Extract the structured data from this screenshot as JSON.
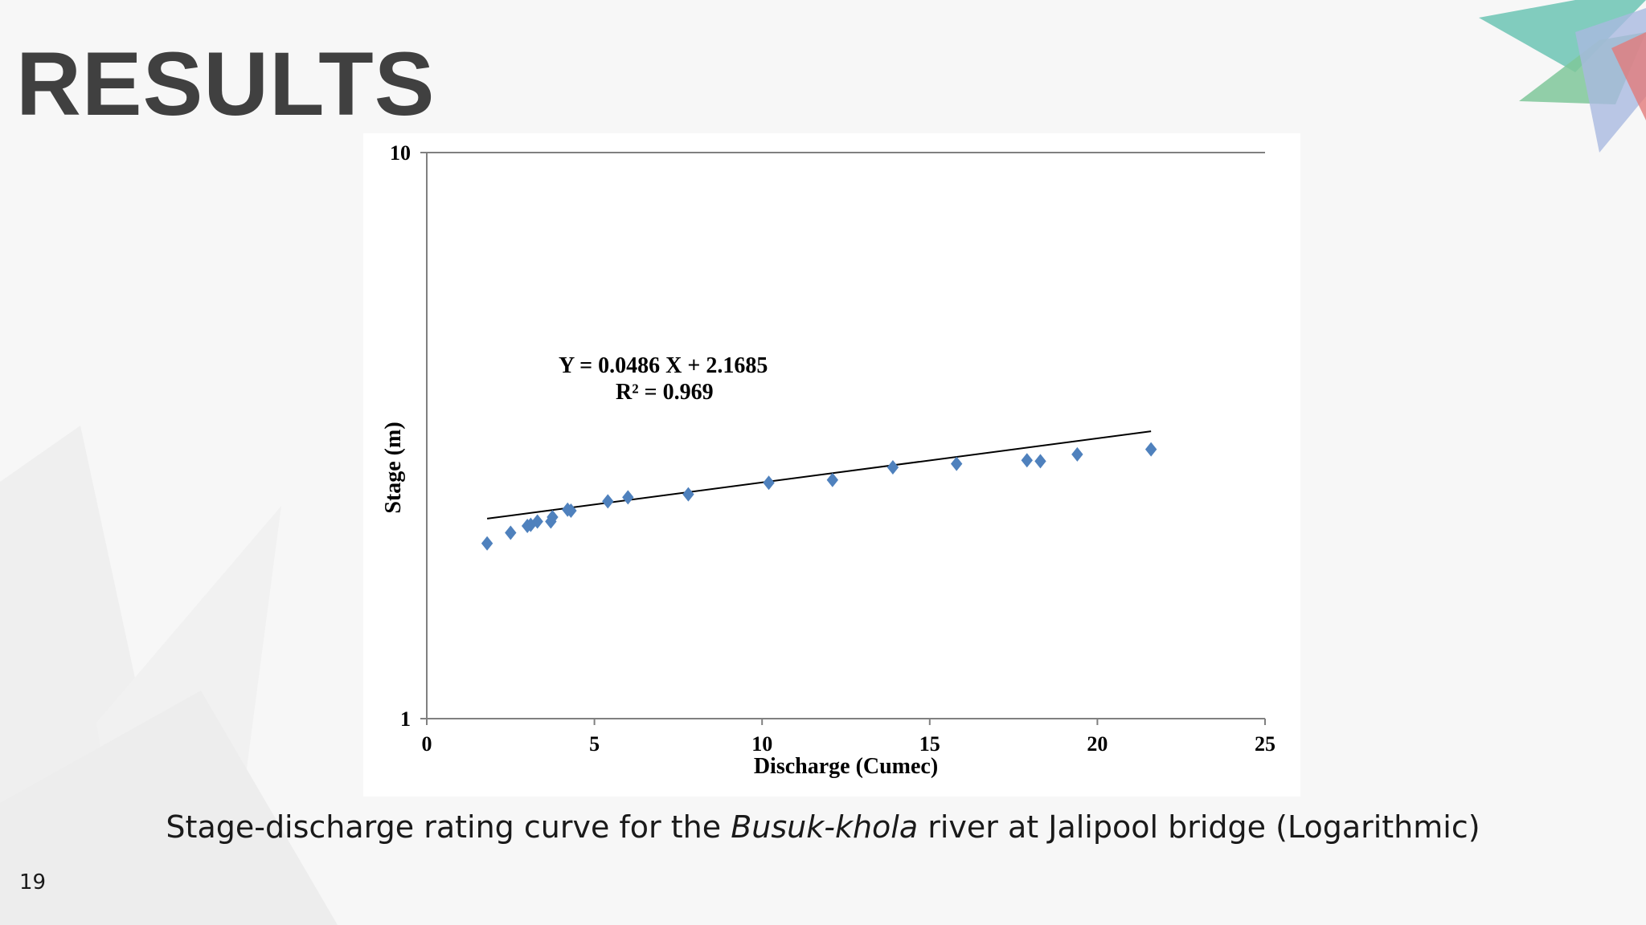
{
  "slide": {
    "title": "RESULTS",
    "caption_before": "Stage-discharge rating curve for the",
    "caption_italic": "Busuk-khola",
    "caption_after": "river at Jalipool bridge (Logarithmic)",
    "page_number": "19"
  },
  "chart_data": {
    "type": "scatter",
    "xlabel": "Discharge (Cumec)",
    "ylabel": "Stage (m)",
    "xlim": [
      0,
      25
    ],
    "ylim": [
      1,
      10
    ],
    "y_scale": "log",
    "x_ticks": [
      "0",
      "5",
      "10",
      "15",
      "20",
      "25"
    ],
    "y_ticks": [
      "1",
      "10"
    ],
    "grid": false,
    "legend": false,
    "marker": "diamond",
    "marker_color": "#4f81bd",
    "trendline_equation": "Y = 0.0486 X + 2.1685",
    "trendline_r2": "R² = 0.969",
    "trendline": {
      "slope": 0.0486,
      "intercept": 2.1685,
      "x_range": [
        1.8,
        21.6
      ]
    },
    "points": [
      {
        "x": 1.8,
        "y": 2.04
      },
      {
        "x": 2.5,
        "y": 2.13
      },
      {
        "x": 3.0,
        "y": 2.19
      },
      {
        "x": 3.1,
        "y": 2.2
      },
      {
        "x": 3.3,
        "y": 2.23
      },
      {
        "x": 3.7,
        "y": 2.23
      },
      {
        "x": 3.75,
        "y": 2.27
      },
      {
        "x": 4.2,
        "y": 2.34
      },
      {
        "x": 4.3,
        "y": 2.33
      },
      {
        "x": 5.4,
        "y": 2.42
      },
      {
        "x": 6.0,
        "y": 2.46
      },
      {
        "x": 7.8,
        "y": 2.49
      },
      {
        "x": 10.2,
        "y": 2.61
      },
      {
        "x": 12.1,
        "y": 2.64
      },
      {
        "x": 13.9,
        "y": 2.78
      },
      {
        "x": 15.8,
        "y": 2.82
      },
      {
        "x": 17.9,
        "y": 2.86
      },
      {
        "x": 18.3,
        "y": 2.85
      },
      {
        "x": 19.4,
        "y": 2.93
      },
      {
        "x": 21.6,
        "y": 2.99
      }
    ]
  }
}
